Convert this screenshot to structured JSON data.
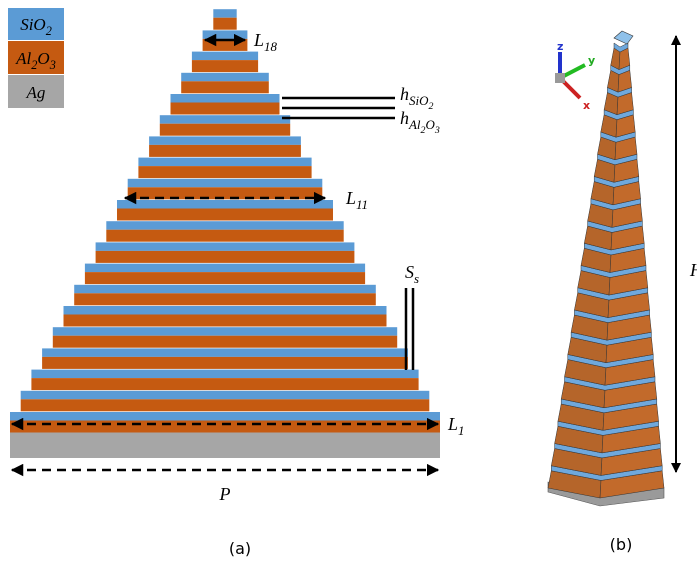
{
  "legend": [
    {
      "parts": [
        {
          "t": "SiO"
        },
        {
          "sub": "2"
        }
      ]
    },
    {
      "parts": [
        {
          "t": "Al"
        },
        {
          "sub": "2"
        },
        {
          "t": "O"
        },
        {
          "sub": "3"
        }
      ]
    },
    {
      "parts": [
        {
          "t": "Ag"
        }
      ]
    }
  ],
  "labels": {
    "l18": {
      "parts": [
        {
          "t": "L"
        },
        {
          "sub": "18"
        }
      ]
    },
    "h_sio2": {
      "parts": [
        {
          "t": "h"
        },
        {
          "sub": "SiO"
        },
        {
          "sub2": "2"
        }
      ]
    },
    "h_al2o3": {
      "parts": [
        {
          "t": "h"
        },
        {
          "sub": "Al"
        },
        {
          "sub2": "2"
        },
        {
          "sub": "O"
        },
        {
          "sub2": "3"
        }
      ]
    },
    "l11": {
      "parts": [
        {
          "t": "L"
        },
        {
          "sub": "11"
        }
      ]
    },
    "ss": {
      "parts": [
        {
          "t": "S"
        },
        {
          "sub": "s"
        }
      ]
    },
    "l1": {
      "parts": [
        {
          "t": "L"
        },
        {
          "sub": "1"
        }
      ]
    },
    "p": {
      "parts": [
        {
          "t": "P"
        }
      ]
    },
    "h": {
      "parts": [
        {
          "t": "H"
        }
      ]
    }
  },
  "axes": {
    "x": "x",
    "y": "y",
    "z": "z"
  },
  "captions": {
    "a": "(a)",
    "b": "(b)"
  }
}
